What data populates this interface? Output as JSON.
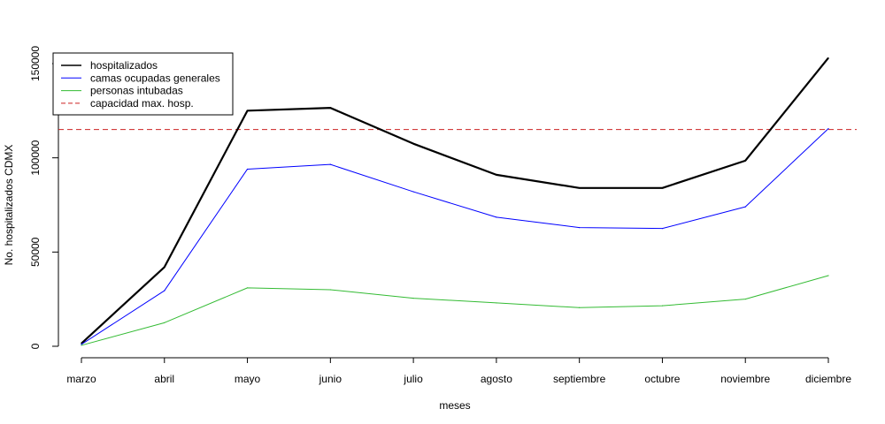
{
  "chart_data": {
    "type": "line",
    "title": "",
    "xlabel": "meses",
    "ylabel": "No. hospitalizados CDMX",
    "categories": [
      "marzo",
      "abril",
      "mayo",
      "junio",
      "julio",
      "agosto",
      "septiembre",
      "octubre",
      "noviembre",
      "diciembre"
    ],
    "yticks": [
      0,
      50000,
      100000,
      150000
    ],
    "ytick_labels": [
      "0",
      "50000",
      "100000",
      "150000"
    ],
    "ylim": [
      0,
      160000
    ],
    "grid": false,
    "legend_position": "top-left",
    "series": [
      {
        "name": "hospitalizados",
        "color": "#000000",
        "style": "solid-thick",
        "values": [
          1500,
          42000,
          125000,
          126500,
          107500,
          91000,
          84000,
          84000,
          98500,
          153000
        ]
      },
      {
        "name": "camas ocupadas generales",
        "color": "#0000ff",
        "style": "solid",
        "values": [
          1000,
          29500,
          94000,
          96500,
          82000,
          68500,
          63000,
          62500,
          74000,
          115500
        ]
      },
      {
        "name": "personas intubadas",
        "color": "#33bb33",
        "style": "solid",
        "values": [
          500,
          12500,
          31000,
          30000,
          25500,
          23000,
          20500,
          21500,
          25000,
          37500
        ]
      }
    ],
    "reference_lines": [
      {
        "name": "capacidad max. hosp.",
        "color": "#cc2222",
        "style": "dashed",
        "value": 115000
      }
    ]
  }
}
